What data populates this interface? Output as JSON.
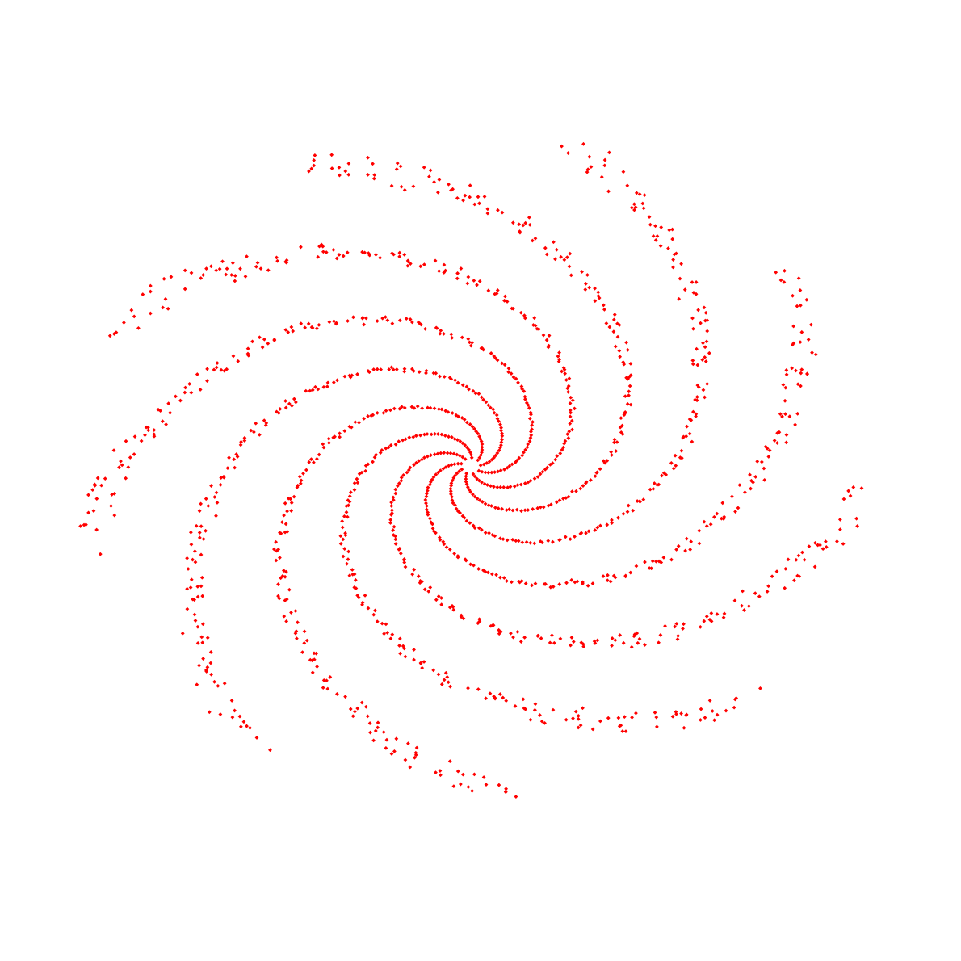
{
  "chart_data": {
    "type": "scatter",
    "title": "",
    "xlabel": "",
    "ylabel": "",
    "grid": false,
    "axes_visible": false,
    "legend": "none",
    "marker": "diamond",
    "marker_color": "#ff0000",
    "xlim": [
      -11,
      11
    ],
    "ylim": [
      -11,
      11
    ],
    "description_of_pattern": "spiral",
    "series": [
      {
        "name": "",
        "x": [],
        "y": []
      }
    ]
  }
}
